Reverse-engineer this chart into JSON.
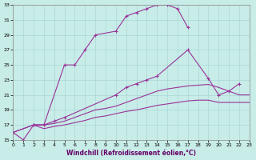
{
  "xlabel": "Windchill (Refroidissement éolien,°C)",
  "bg_color": "#c8ece8",
  "grid_color": "#a8d8d4",
  "line_color": "#993399",
  "xlim": [
    0,
    23
  ],
  "ylim": [
    15,
    33
  ],
  "xticks": [
    0,
    1,
    2,
    3,
    4,
    5,
    6,
    7,
    8,
    9,
    10,
    11,
    12,
    13,
    14,
    15,
    16,
    17,
    18,
    19,
    20,
    21,
    22,
    23
  ],
  "yticks": [
    15,
    17,
    19,
    21,
    23,
    25,
    27,
    29,
    31,
    33
  ],
  "line1_x": [
    0,
    1,
    2,
    3,
    5,
    6,
    7,
    8,
    10,
    11,
    12,
    13,
    14,
    15,
    16,
    17
  ],
  "line1_y": [
    16.0,
    15.0,
    17.0,
    17.0,
    25.0,
    25.0,
    27.0,
    29.0,
    29.5,
    31.5,
    32.0,
    32.5,
    33.0,
    33.0,
    32.5,
    30.0
  ],
  "line2_x": [
    2,
    3,
    4,
    5,
    10,
    11,
    12,
    13,
    14,
    17,
    19,
    20,
    21,
    22
  ],
  "line2_y": [
    17.0,
    17.0,
    17.5,
    18.0,
    21.0,
    22.0,
    22.5,
    23.0,
    23.5,
    27.0,
    23.2,
    21.0,
    21.5,
    22.5
  ],
  "line3_x": [
    0,
    2,
    3,
    4,
    5,
    6,
    7,
    8,
    9,
    10,
    11,
    12,
    13,
    14,
    15,
    16,
    17,
    18,
    19,
    20,
    21,
    22,
    23
  ],
  "line3_y": [
    16.0,
    17.0,
    17.0,
    17.2,
    17.5,
    18.0,
    18.5,
    19.0,
    19.2,
    19.5,
    20.0,
    20.5,
    21.0,
    21.5,
    21.8,
    22.0,
    22.2,
    22.3,
    22.4,
    22.0,
    21.5,
    21.0,
    21.0
  ],
  "line4_x": [
    0,
    2,
    3,
    4,
    5,
    6,
    7,
    8,
    9,
    10,
    11,
    12,
    13,
    14,
    15,
    16,
    17,
    18,
    19,
    20,
    21,
    22,
    23
  ],
  "line4_y": [
    16.0,
    17.0,
    16.5,
    16.8,
    17.0,
    17.3,
    17.6,
    18.0,
    18.2,
    18.5,
    18.8,
    19.0,
    19.3,
    19.6,
    19.8,
    20.0,
    20.2,
    20.3,
    20.3,
    20.0,
    20.0,
    20.0,
    20.0
  ]
}
